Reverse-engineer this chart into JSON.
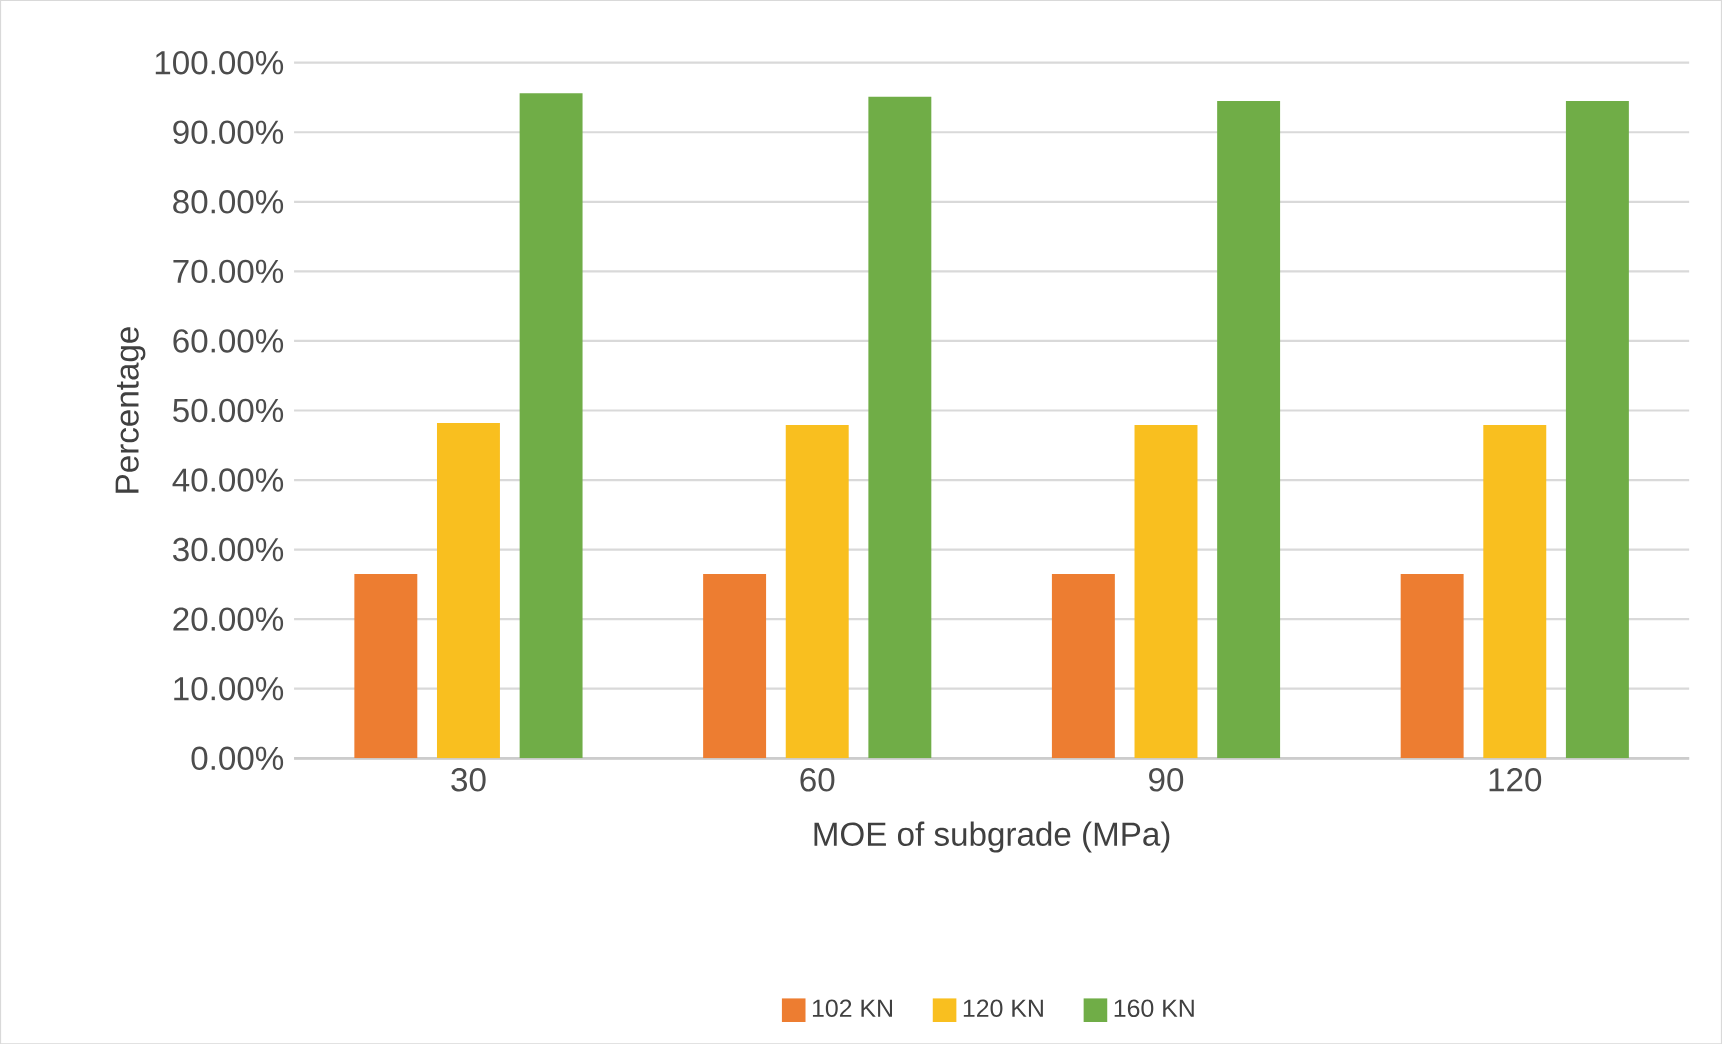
{
  "chart_data": {
    "type": "bar",
    "xlabel": "MOE of subgrade (MPa)",
    "ylabel": "Percentage",
    "categories": [
      "30",
      "60",
      "90",
      "120"
    ],
    "series": [
      {
        "name": "102 KN",
        "color": "#ed7d31",
        "values": [
          26.5,
          26.5,
          26.5,
          26.5
        ]
      },
      {
        "name": "120 KN",
        "color": "#f9bf1f",
        "values": [
          48.2,
          47.9,
          47.9,
          47.9
        ]
      },
      {
        "name": "160 KN",
        "color": "#70ad47",
        "values": [
          95.6,
          95.1,
          94.5,
          94.5
        ]
      }
    ],
    "ylim": [
      0,
      100
    ],
    "yticks": [
      {
        "value": 0,
        "label": "0.00%"
      },
      {
        "value": 10,
        "label": "10.00%"
      },
      {
        "value": 20,
        "label": "20.00%"
      },
      {
        "value": 30,
        "label": "30.00%"
      },
      {
        "value": 40,
        "label": "40.00%"
      },
      {
        "value": 50,
        "label": "50.00%"
      },
      {
        "value": 60,
        "label": "60.00%"
      },
      {
        "value": 70,
        "label": "70.00%"
      },
      {
        "value": 80,
        "label": "80.00%"
      },
      {
        "value": 90,
        "label": "90.00%"
      },
      {
        "value": 100,
        "label": "100.00%"
      }
    ],
    "grid": "y",
    "legend": "bottom"
  }
}
